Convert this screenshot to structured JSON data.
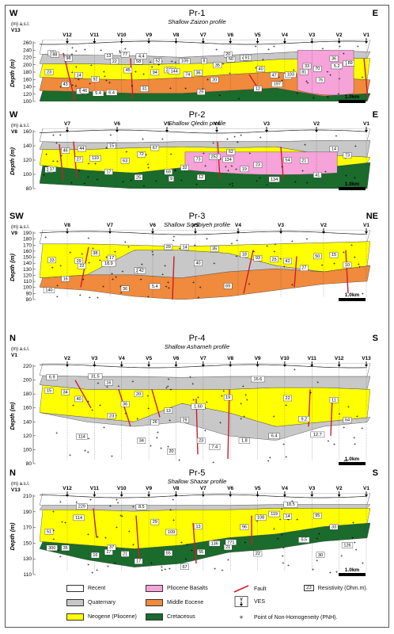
{
  "colors": {
    "recent": "#ffffff",
    "quaternary": "#c8c8c8",
    "neogene": "#ffff00",
    "basalt": "#f5a3d8",
    "eocene": "#f08a3c",
    "cretaceous": "#1a6b2c",
    "fault": "#c81e2e"
  },
  "profiles": [
    {
      "id": "Pr-1",
      "subtitle": "Shallow Zaizon profile",
      "left_dir": "W",
      "right_dir": "E",
      "first_ves": "V13",
      "unit": "(m) a.s.l.",
      "ticks": [
        "260",
        "240",
        "220",
        "200",
        "180",
        "160",
        "140",
        "120",
        "100"
      ],
      "ves": [
        "V12",
        "V11",
        "V10",
        "V9",
        "V8",
        "V7",
        "V6",
        "V5",
        "V4",
        "V3",
        "V2",
        "V1"
      ],
      "labels": [
        "23",
        "14",
        "13",
        "58",
        "33",
        "36",
        "20",
        "12",
        "52",
        "70",
        "75",
        "43",
        "92",
        "77",
        "94",
        "109",
        "20",
        "42",
        "47",
        "81",
        "36",
        "13",
        "9.2",
        "6.4",
        "4.4",
        "26",
        "29",
        "50",
        "40",
        "103",
        "76",
        "89",
        "98",
        "5.4",
        "45",
        "52",
        "74",
        "35",
        "91",
        "197",
        "33",
        "5.2",
        "88",
        "46",
        "22",
        "31",
        "144",
        "8"
      ],
      "scale": "1.0km"
    },
    {
      "id": "Pr-2",
      "subtitle": "Shallow Qledin profile",
      "left_dir": "W",
      "right_dir": "E",
      "first_ves": "V8",
      "unit": "(m) a.s.l.",
      "ticks": [
        "160",
        "140",
        "120",
        "100",
        "80"
      ],
      "ves": [
        "V7",
        "V6",
        "V5",
        "V4",
        "V3",
        "V2",
        "V1"
      ],
      "labels": [
        "30",
        "27",
        "17",
        "25",
        "69",
        "73",
        "134",
        "23",
        "54",
        "41",
        "73",
        "46",
        "110",
        "63",
        "67",
        "32",
        "252",
        "19",
        "134",
        "21",
        "14",
        "17",
        "44",
        "15",
        "72",
        "9",
        "12",
        "62"
      ],
      "scale": "1.0km"
    },
    {
      "id": "Pr-3",
      "subtitle": "Shallow Sqelbiyeh profile",
      "left_dir": "SW",
      "right_dir": "NE",
      "first_ves": "V9",
      "unit": "(m) a.s.l.",
      "ticks": [
        "190",
        "180",
        "170",
        "160",
        "150",
        "140",
        "130",
        "120",
        "110",
        "100",
        "90",
        "80"
      ],
      "ves": [
        "V8",
        "V7",
        "V6",
        "V5",
        "V4",
        "V3",
        "V2",
        "V1"
      ],
      "labels": [
        "140",
        "29",
        "18.9",
        "25",
        "20",
        "40",
        "69",
        "93",
        "42",
        "50",
        "10",
        "16",
        "38",
        "36",
        "5.4",
        "14",
        "35",
        "18",
        "25",
        "27",
        "15",
        "33",
        "22",
        "17",
        "42"
      ],
      "scale": "1.0km"
    },
    {
      "id": "Pr-4",
      "subtitle": "Shallow Ashameh profile",
      "left_dir": "N",
      "right_dir": "S",
      "first_ves": "V1",
      "unit": "(m) a.s.l.",
      "ticks": [
        "220",
        "200",
        "180",
        "160",
        "140",
        "120",
        "100",
        "80"
      ],
      "ves": [
        "V2",
        "V3",
        "V4",
        "V5",
        "V6",
        "V7",
        "V8",
        "V9",
        "V10",
        "V11",
        "V12",
        "V13"
      ],
      "labels": [
        "15",
        "40",
        "16",
        "20",
        "13",
        "1.60",
        "19",
        "16.6",
        "22",
        "12.7",
        "64",
        "34",
        "31.5",
        "36",
        "26",
        "29",
        "7.4",
        "1.8",
        "6.4",
        "9.2",
        "11",
        "6.9",
        "114",
        "23",
        "34",
        "20",
        "23"
      ],
      "scale": "1.0km"
    },
    {
      "id": "Pr-5",
      "subtitle": "Shallow Shazar profile",
      "left_dir": "N",
      "right_dir": "S",
      "first_ves": "V13",
      "unit": "(m) a.s.l.",
      "ticks": [
        "210",
        "190",
        "170",
        "150",
        "130",
        "110"
      ],
      "ves": [
        "V12",
        "V11",
        "V10",
        "V9",
        "V8",
        "V7",
        "V6",
        "V5",
        "V4",
        "V3",
        "V2",
        "V1"
      ],
      "labels": [
        "51",
        "114",
        "17",
        "17",
        "55",
        "13",
        "21",
        "22",
        "14",
        "95",
        "126",
        "35",
        "16",
        "21",
        "29",
        "67",
        "136",
        "96",
        "119",
        "5.5",
        "33",
        "300",
        "229",
        "37",
        "8.5",
        "109",
        "55",
        "771",
        "108",
        "18.5",
        "30"
      ],
      "scale": "1.0km"
    }
  ],
  "legend": {
    "recent": "Recent",
    "quaternary": "Quaternary",
    "neogene": "Neogene (Pliocene)",
    "basalts": "Pliocene Basalts",
    "eocene": "Middle Eocene",
    "cretaceous": "Cretaceous",
    "fault": "Fault",
    "ves": "VES",
    "resistivity": "Resistivity (Ohm.m).",
    "pnh": "Point of Non-Homogeneity (PNH).",
    "res_sample": "23",
    "ves_sample": "V"
  }
}
